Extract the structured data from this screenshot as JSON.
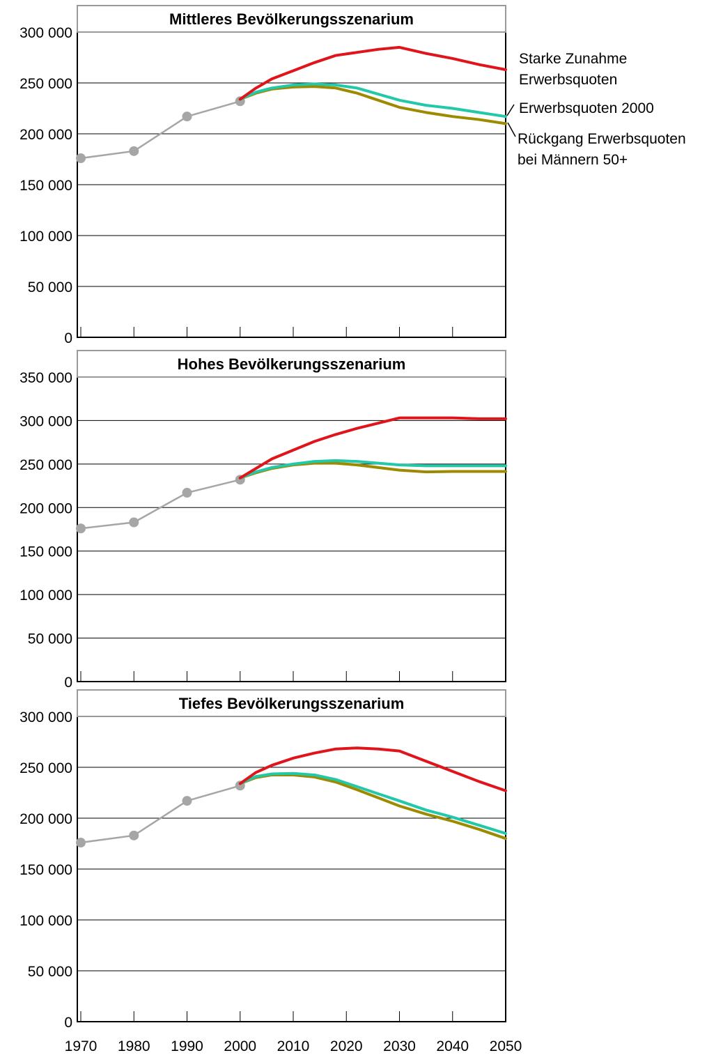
{
  "chart_data": [
    {
      "type": "line",
      "title": "Mittleres Bevölkerungsszenarium",
      "xlabel": "",
      "ylabel": "",
      "xlim": [
        1970,
        2050
      ],
      "ylim": [
        0,
        300000
      ],
      "yticks": [
        0,
        50000,
        100000,
        150000,
        200000,
        250000,
        300000
      ],
      "ytick_labels": [
        "0",
        "50 000",
        "100 000",
        "150 000",
        "200 000",
        "250 000",
        "300 000"
      ],
      "grid": true,
      "historical": {
        "x": [
          1970,
          1980,
          1990,
          2000
        ],
        "y": [
          176000,
          183000,
          217000,
          232000
        ],
        "color": "#a6a6a6"
      },
      "series": [
        {
          "name": "Starke Zunahme Erwerbsquoten",
          "color": "#e0141b",
          "x": [
            2000,
            2003,
            2006,
            2010,
            2014,
            2018,
            2022,
            2026,
            2030,
            2035,
            2040,
            2045,
            2050
          ],
          "y": [
            234000,
            245000,
            254000,
            262000,
            270000,
            277000,
            280000,
            283000,
            285000,
            279000,
            274000,
            268000,
            263000
          ]
        },
        {
          "name": "Erwerbsquoten 2000",
          "color": "#22c8a8",
          "x": [
            2000,
            2003,
            2006,
            2010,
            2014,
            2018,
            2022,
            2026,
            2030,
            2035,
            2040,
            2045,
            2050
          ],
          "y": [
            234000,
            241000,
            245000,
            248000,
            249000,
            248000,
            245000,
            239000,
            233000,
            228000,
            225000,
            221000,
            217000
          ]
        },
        {
          "name": "Rückgang Erwerbsquoten bei Männern 50+",
          "color": "#9c8a00",
          "x": [
            2000,
            2003,
            2006,
            2010,
            2014,
            2018,
            2022,
            2026,
            2030,
            2035,
            2040,
            2045,
            2050
          ],
          "y": [
            234000,
            240000,
            244000,
            246000,
            246500,
            245000,
            240000,
            233000,
            226000,
            221000,
            217000,
            214000,
            210000
          ]
        }
      ]
    },
    {
      "type": "line",
      "title": "Hohes Bevölkerungsszenarium",
      "xlabel": "",
      "ylabel": "",
      "xlim": [
        1970,
        2050
      ],
      "ylim": [
        0,
        350000
      ],
      "yticks": [
        0,
        50000,
        100000,
        150000,
        200000,
        250000,
        300000,
        350000
      ],
      "ytick_labels": [
        "0",
        "50 000",
        "100 000",
        "150 000",
        "200 000",
        "250 000",
        "300 000",
        "350 000"
      ],
      "grid": true,
      "historical": {
        "x": [
          1970,
          1980,
          1990,
          2000
        ],
        "y": [
          176000,
          183000,
          217000,
          232000
        ],
        "color": "#a6a6a6"
      },
      "series": [
        {
          "name": "Starke Zunahme Erwerbsquoten",
          "color": "#e0141b",
          "x": [
            2000,
            2003,
            2006,
            2010,
            2014,
            2018,
            2022,
            2026,
            2030,
            2035,
            2040,
            2045,
            2050
          ],
          "y": [
            234000,
            245000,
            256000,
            266000,
            276000,
            284000,
            291000,
            297000,
            303000,
            303000,
            303000,
            302000,
            302000
          ]
        },
        {
          "name": "Erwerbsquoten 2000",
          "color": "#22c8a8",
          "x": [
            2000,
            2003,
            2006,
            2010,
            2014,
            2018,
            2022,
            2026,
            2030,
            2035,
            2040,
            2045,
            2050
          ],
          "y": [
            234000,
            241000,
            246000,
            250000,
            253000,
            254000,
            253000,
            251000,
            249000,
            248000,
            248000,
            248000,
            248000
          ]
        },
        {
          "name": "Rückgang Erwerbsquoten bei Männern 50+",
          "color": "#9c8a00",
          "x": [
            2000,
            2003,
            2006,
            2010,
            2014,
            2018,
            2022,
            2026,
            2030,
            2035,
            2040,
            2045,
            2050
          ],
          "y": [
            234000,
            240000,
            245000,
            249000,
            251000,
            251000,
            249000,
            246000,
            243000,
            241000,
            241500,
            241500,
            241500
          ]
        }
      ]
    },
    {
      "type": "line",
      "title": "Tiefes Bevölkerungsszenarium",
      "xlabel": "",
      "ylabel": "",
      "xlim": [
        1970,
        2050
      ],
      "ylim": [
        0,
        300000
      ],
      "yticks": [
        0,
        50000,
        100000,
        150000,
        200000,
        250000,
        300000
      ],
      "ytick_labels": [
        "0",
        "50 000",
        "100 000",
        "150 000",
        "200 000",
        "250 000",
        "300 000"
      ],
      "grid": true,
      "xticks": [
        1970,
        1980,
        1990,
        2000,
        2010,
        2020,
        2030,
        2040,
        2050
      ],
      "xtick_labels": [
        "1970",
        "1980",
        "1990",
        "2000",
        "2010",
        "2020",
        "2030",
        "2040",
        "2050"
      ],
      "historical": {
        "x": [
          1970,
          1980,
          1990,
          2000
        ],
        "y": [
          176000,
          183000,
          217000,
          232000
        ],
        "color": "#a6a6a6"
      },
      "series": [
        {
          "name": "Starke Zunahme Erwerbsquoten",
          "color": "#e0141b",
          "x": [
            2000,
            2003,
            2006,
            2010,
            2014,
            2018,
            2022,
            2026,
            2030,
            2035,
            2040,
            2045,
            2050
          ],
          "y": [
            234000,
            245000,
            252000,
            259000,
            264000,
            268000,
            269000,
            268000,
            266000,
            256000,
            246000,
            236000,
            227000
          ]
        },
        {
          "name": "Erwerbsquoten 2000",
          "color": "#22c8a8",
          "x": [
            2000,
            2003,
            2006,
            2010,
            2014,
            2018,
            2022,
            2026,
            2030,
            2035,
            2040,
            2045,
            2050
          ],
          "y": [
            234000,
            241000,
            243500,
            244000,
            242500,
            238000,
            231000,
            224000,
            217000,
            208000,
            201000,
            193000,
            185000
          ]
        },
        {
          "name": "Rückgang Erwerbsquoten bei Männern 50+",
          "color": "#9c8a00",
          "x": [
            2000,
            2003,
            2006,
            2010,
            2014,
            2018,
            2022,
            2026,
            2030,
            2035,
            2040,
            2045,
            2050
          ],
          "y": [
            234000,
            240000,
            242500,
            242500,
            240500,
            235500,
            228000,
            220000,
            212000,
            204000,
            197000,
            189000,
            180000
          ]
        }
      ]
    }
  ],
  "legend": {
    "placement": "right of top panel",
    "entries": [
      {
        "lines": [
          "Starke Zunahme",
          "Erwerbsquoten"
        ]
      },
      {
        "lines": [
          "Erwerbsquoten 2000"
        ]
      },
      {
        "lines": [
          "Rückgang Erwerbsquoten",
          "bei Männern 50+"
        ]
      }
    ]
  }
}
